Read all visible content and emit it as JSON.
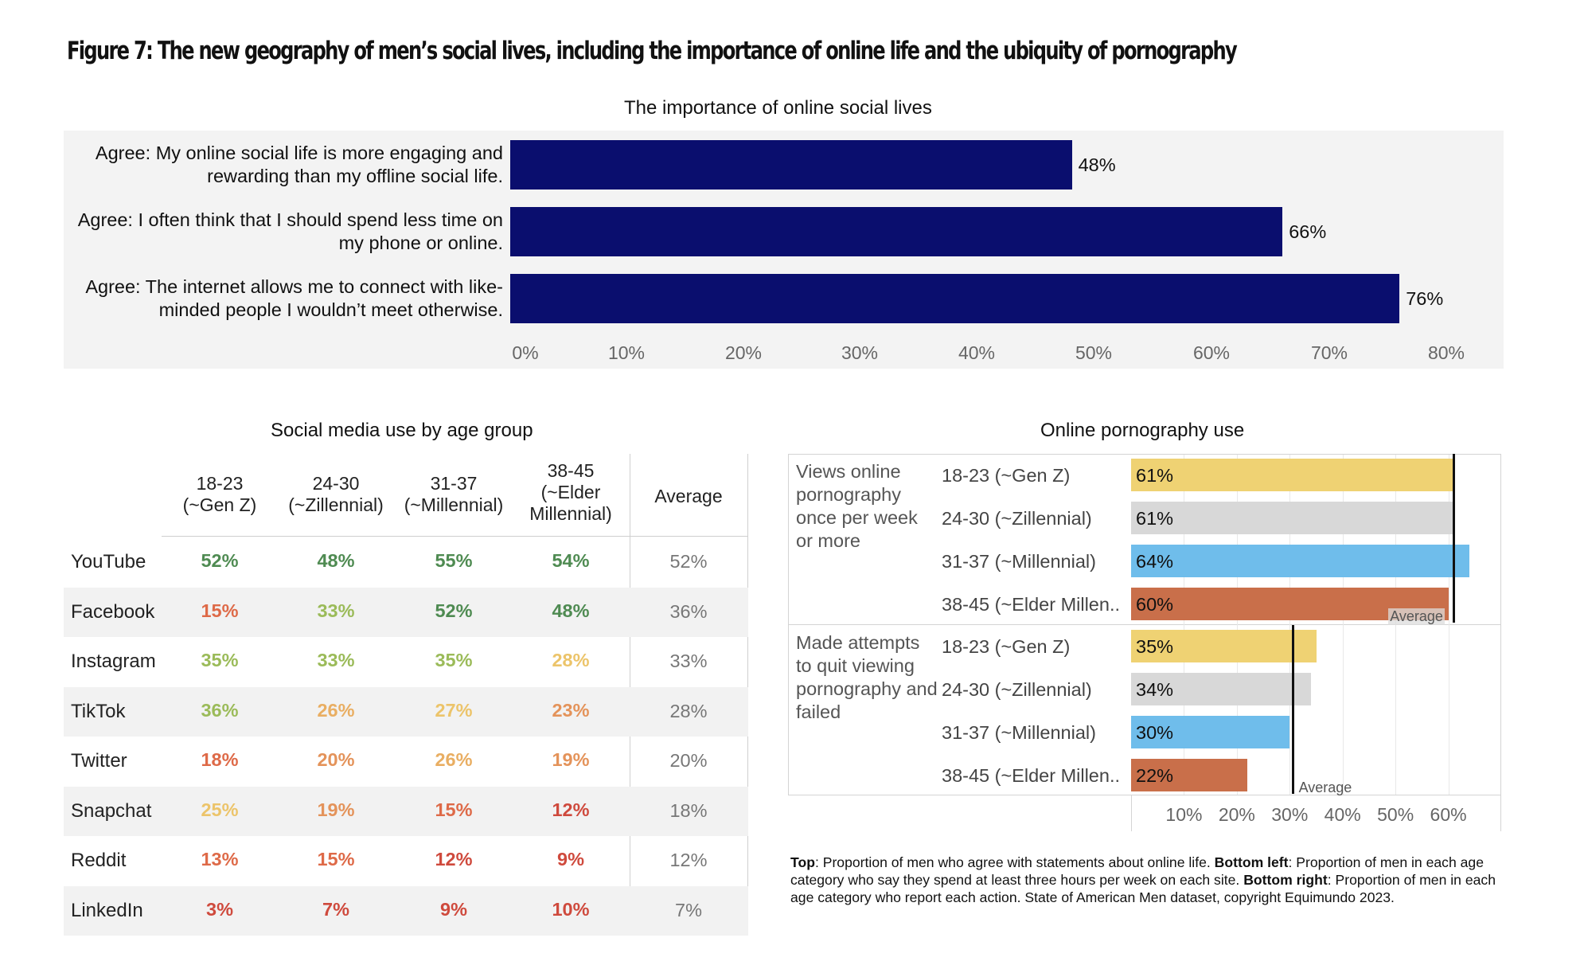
{
  "figure_title": "Figure 7: The new geography of men’s social lives, including the importance of online life and the ubiquity of pornography",
  "colors": {
    "navy": "#0a0e6e",
    "gen_z": "#efd273",
    "zillennial": "#d8d8d8",
    "millennial": "#6fbdeb",
    "elder_millennial": "#c96f4a",
    "dark_green": "#4f8b52",
    "light_green": "#9bbb59",
    "yellow": "#ecc46a",
    "orange": "#e4935a",
    "red": "#cf4a3d"
  },
  "chart_data": [
    {
      "type": "bar",
      "orientation": "horizontal",
      "title": "The importance of online social lives",
      "categories": [
        "Agree: My online social life is more engaging and rewarding than my offline social life.",
        "Agree: I often think that I should spend less time on my phone or online.",
        "Agree: The internet allows me to connect with like-minded people I wouldn’t meet otherwise."
      ],
      "values": [
        48,
        66,
        76
      ],
      "value_labels": [
        "48%",
        "66%",
        "76%"
      ],
      "xlim": [
        0,
        80
      ],
      "x_ticks": [
        "0%",
        "10%",
        "20%",
        "30%",
        "40%",
        "50%",
        "60%",
        "70%",
        "80%"
      ]
    },
    {
      "type": "table",
      "title": "Social media use by age group",
      "columns": [
        "18-23\n(~Gen Z)",
        "24-30\n(~Zillennial)",
        "31-37\n(~Millennial)",
        "38-45\n(~Elder\nMillennial)",
        "Average"
      ],
      "rows": [
        {
          "label": "YouTube",
          "values": [
            "52%",
            "48%",
            "55%",
            "54%"
          ],
          "colors": [
            "dark_green",
            "dark_green",
            "dark_green",
            "dark_green"
          ],
          "average": "52%"
        },
        {
          "label": "Facebook",
          "values": [
            "15%",
            "33%",
            "52%",
            "48%"
          ],
          "colors": [
            "orange_red",
            "light_green",
            "dark_green",
            "dark_green"
          ],
          "average": "36%"
        },
        {
          "label": "Instagram",
          "values": [
            "35%",
            "33%",
            "35%",
            "28%"
          ],
          "colors": [
            "light_green",
            "light_green",
            "light_green",
            "yellow"
          ],
          "average": "33%"
        },
        {
          "label": "TikTok",
          "values": [
            "36%",
            "26%",
            "27%",
            "23%"
          ],
          "colors": [
            "light_green",
            "yellow_orange",
            "yellow",
            "orange"
          ],
          "average": "28%"
        },
        {
          "label": "Twitter",
          "values": [
            "18%",
            "20%",
            "26%",
            "19%"
          ],
          "colors": [
            "orange_red",
            "orange",
            "yellow_orange",
            "orange"
          ],
          "average": "20%"
        },
        {
          "label": "Snapchat",
          "values": [
            "25%",
            "19%",
            "15%",
            "12%"
          ],
          "colors": [
            "yellow",
            "orange",
            "orange_red",
            "red"
          ],
          "average": "18%"
        },
        {
          "label": "Reddit",
          "values": [
            "13%",
            "15%",
            "12%",
            "9%"
          ],
          "colors": [
            "orange_red",
            "orange_red",
            "red",
            "red"
          ],
          "average": "12%"
        },
        {
          "label": "LinkedIn",
          "values": [
            "3%",
            "7%",
            "9%",
            "10%"
          ],
          "colors": [
            "red",
            "red",
            "red",
            "red"
          ],
          "average": "7%"
        }
      ]
    },
    {
      "type": "bar",
      "orientation": "horizontal",
      "title": "Online pornography use",
      "groups": [
        {
          "label": "Views online pornography once per week or more",
          "categories": [
            "18-23 (~Gen Z)",
            "24-30 (~Zillennial)",
            "31-37 (~Millennial)",
            "38-45 (~Elder Millen.."
          ],
          "values": [
            61,
            61,
            64,
            60
          ],
          "value_labels": [
            "61%",
            "61%",
            "64%",
            "60%"
          ],
          "average": 61,
          "average_label": "Average"
        },
        {
          "label": "Made attempts to quit viewing pornography and failed",
          "categories": [
            "18-23 (~Gen Z)",
            "24-30 (~Zillennial)",
            "31-37 (~Millennial)",
            "38-45 (~Elder Millen.."
          ],
          "values": [
            35,
            34,
            30,
            22
          ],
          "value_labels": [
            "35%",
            "34%",
            "30%",
            "22%"
          ],
          "average": 30.5,
          "average_label": "Average"
        }
      ],
      "xlim": [
        0,
        70
      ],
      "x_ticks": [
        "10%",
        "20%",
        "30%",
        "40%",
        "50%",
        "60%"
      ]
    }
  ],
  "footnote": {
    "p1_bold": "Top",
    "p1": ": Proportion of men who agree with statements about online life. ",
    "p2_bold": "Bottom left",
    "p2": ": Proportion of men in each age category who say they spend at least three hours per week on each site. ",
    "p3_bold": "Bottom right",
    "p3": ": Proportion of men in each age category who report each action. State of American Men dataset, copyright Equimundo 2023."
  }
}
